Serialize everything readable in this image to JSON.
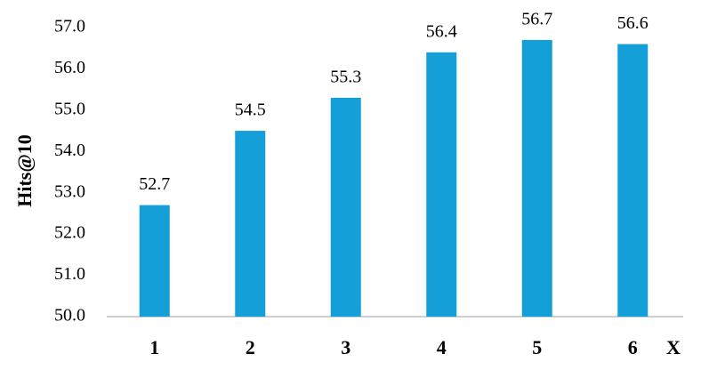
{
  "chart_data": {
    "type": "bar",
    "y_label": "Hits@10",
    "x_label": "X",
    "categories": [
      "1",
      "2",
      "3",
      "4",
      "5",
      "6"
    ],
    "values": [
      52.7,
      54.5,
      55.3,
      56.4,
      56.7,
      56.6
    ],
    "color": "#149fd8",
    "ylim": [
      50,
      57
    ],
    "yticks": [
      {
        "value": 50,
        "label": "50.0"
      },
      {
        "value": 51,
        "label": "51.0"
      },
      {
        "value": 52,
        "label": "52.0"
      },
      {
        "value": 53,
        "label": "53.0"
      },
      {
        "value": 54,
        "label": "54.0"
      },
      {
        "value": 55,
        "label": "55.0"
      },
      {
        "value": 56,
        "label": "56.0"
      },
      {
        "value": 57,
        "label": "57.0"
      }
    ],
    "grid": false
  }
}
